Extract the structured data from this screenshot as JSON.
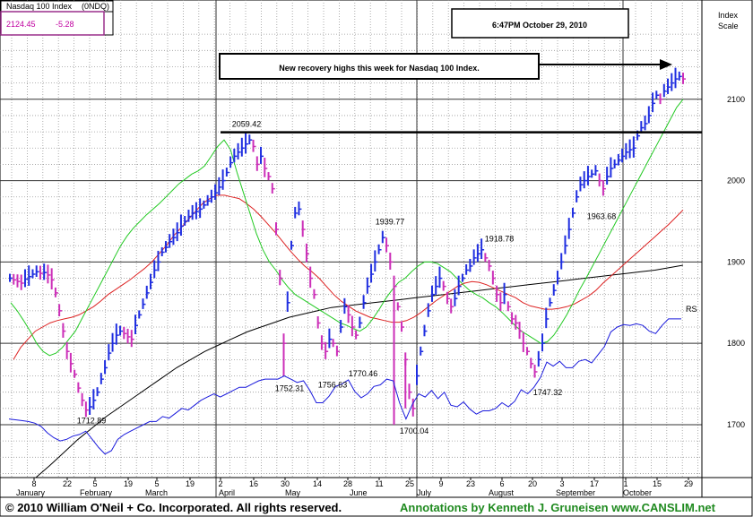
{
  "chart_data": {
    "type": "ohlc",
    "title": "Nasdaq 100 Index",
    "symbol": "(0NDQ)",
    "last_price": "2124.45",
    "change": "-5.28",
    "timestamp": "6:47PM October 29, 2010",
    "y_axis_title": [
      "Index",
      "Scale"
    ],
    "y_ticks": [
      1700,
      1800,
      1900,
      2000,
      2100
    ],
    "ylim": [
      1635,
      2200
    ],
    "callout": "New recovery highs this week for Nasdaq 100 Index.",
    "resistance_level": 2059.42,
    "rs_label": "RS",
    "price_labels": [
      {
        "text": "2059.42",
        "value": 2059.42
      },
      {
        "text": "1712.89",
        "value": 1712.89
      },
      {
        "text": "1752.31",
        "value": 1752.31
      },
      {
        "text": "1756.63",
        "value": 1756.63
      },
      {
        "text": "1770.46",
        "value": 1770.46
      },
      {
        "text": "1939.77",
        "value": 1939.77
      },
      {
        "text": "1700.04",
        "value": 1700.04
      },
      {
        "text": "1918.78",
        "value": 1918.78
      },
      {
        "text": "1747.32",
        "value": 1747.32
      },
      {
        "text": "1963.68",
        "value": 1963.68
      }
    ],
    "x_day_labels": [
      "8",
      "22",
      "5",
      "19",
      "5",
      "19",
      "2",
      "16",
      "30",
      "14",
      "28",
      "11",
      "25",
      "9",
      "23",
      "6",
      "20",
      "3",
      "17",
      "1",
      "15",
      "29"
    ],
    "x_month_labels": [
      "January",
      "February",
      "March",
      "April",
      "May",
      "June",
      "July",
      "August",
      "September",
      "October"
    ],
    "series": [
      {
        "name": "price",
        "values": [
          1880,
          1878,
          1876,
          1874,
          1879,
          1882,
          1885,
          1888,
          1886,
          1887,
          1884,
          1878,
          1862,
          1840,
          1815,
          1790,
          1775,
          1762,
          1745,
          1730,
          1718,
          1722,
          1730,
          1740,
          1756,
          1770,
          1788,
          1800,
          1810,
          1815,
          1812,
          1808,
          1805,
          1822,
          1835,
          1848,
          1862,
          1875,
          1890,
          1900,
          1912,
          1918,
          1925,
          1930,
          1936,
          1944,
          1950,
          1956,
          1960,
          1962,
          1965,
          1970,
          1975,
          1980,
          1985,
          1992,
          2000,
          2010,
          2022,
          2030,
          2035,
          2040,
          2045,
          2050,
          2042,
          2020,
          2030,
          2015,
          2005,
          1990,
          1940,
          1880,
          1800,
          1850,
          1920,
          1960,
          1965,
          1940,
          1910,
          1880,
          1860,
          1825,
          1800,
          1790,
          1805,
          1800,
          1790,
          1820,
          1845,
          1835,
          1820,
          1810,
          1825,
          1850,
          1870,
          1885,
          1900,
          1915,
          1930,
          1920,
          1900,
          1870,
          1845,
          1820,
          1780,
          1740,
          1720,
          1760,
          1790,
          1815,
          1840,
          1860,
          1870,
          1880,
          1870,
          1855,
          1845,
          1855,
          1870,
          1880,
          1890,
          1895,
          1905,
          1910,
          1915,
          1905,
          1895,
          1880,
          1860,
          1850,
          1860,
          1845,
          1830,
          1825,
          1815,
          1800,
          1790,
          1775,
          1765,
          1780,
          1800,
          1830,
          1850,
          1865,
          1880,
          1900,
          1920,
          1940,
          1960,
          1980,
          1995,
          2000,
          2005,
          2008,
          2012,
          2000,
          1990,
          2005,
          2015,
          2020,
          2025,
          2030,
          2035,
          2038,
          2040,
          2055,
          2065,
          2070,
          2080,
          2095,
          2105,
          2100,
          2110,
          2115,
          2120,
          2125,
          2128,
          2125
        ]
      },
      {
        "name": "rs_line",
        "values": [
          1707,
          1706,
          1705,
          1704,
          1702,
          1698,
          1690,
          1684,
          1680,
          1682,
          1686,
          1688,
          1692,
          1682,
          1672,
          1664,
          1668,
          1682,
          1688,
          1692,
          1696,
          1700,
          1704,
          1704,
          1710,
          1708,
          1714,
          1720,
          1718,
          1724,
          1730,
          1734,
          1738,
          1734,
          1738,
          1742,
          1746,
          1746,
          1750,
          1754,
          1756,
          1756,
          1756,
          1760,
          1756,
          1752,
          1754,
          1742,
          1727,
          1727,
          1735,
          1747,
          1750,
          1755,
          1741,
          1733,
          1738,
          1747,
          1749,
          1756,
          1754,
          1727,
          1707,
          1725,
          1738,
          1734,
          1742,
          1732,
          1740,
          1724,
          1722,
          1728,
          1719,
          1713,
          1717,
          1717,
          1720,
          1727,
          1722,
          1729,
          1743,
          1738,
          1746,
          1758,
          1777,
          1772,
          1778,
          1770,
          1770,
          1778,
          1780,
          1776,
          1786,
          1796,
          1814,
          1820,
          1823,
          1822,
          1824,
          1822,
          1815,
          1812,
          1822,
          1830,
          1830,
          1830
        ]
      },
      {
        "name": "ma_10_week",
        "values": [
          1850,
          1840,
          1828,
          1815,
          1800,
          1790,
          1785,
          1788,
          1795,
          1805,
          1815,
          1830,
          1845,
          1860,
          1875,
          1890,
          1905,
          1920,
          1932,
          1942,
          1950,
          1958,
          1965,
          1972,
          1980,
          1988,
          1996,
          2002,
          2008,
          2012,
          2018,
          2030,
          2042,
          2050,
          2038,
          2010,
          1985,
          1960,
          1935,
          1915,
          1900,
          1890,
          1878,
          1868,
          1860,
          1855,
          1850,
          1845,
          1840,
          1835,
          1830,
          1825,
          1822,
          1818,
          1815,
          1820,
          1830,
          1842,
          1855,
          1866,
          1875,
          1880,
          1888,
          1895,
          1900,
          1900,
          1898,
          1893,
          1888,
          1880,
          1872,
          1865,
          1860,
          1856,
          1850,
          1845,
          1838,
          1830,
          1822,
          1815,
          1810,
          1805,
          1800,
          1802,
          1810,
          1822,
          1835,
          1850,
          1866,
          1880,
          1895,
          1910,
          1925,
          1940,
          1955,
          1970,
          1985,
          2000,
          2015,
          2030,
          2045,
          2060,
          2075,
          2090,
          2100
        ]
      },
      {
        "name": "ma_red",
        "values": [
          1780,
          1795,
          1805,
          1815,
          1820,
          1825,
          1828,
          1830,
          1832,
          1835,
          1840,
          1845,
          1852,
          1860,
          1866,
          1872,
          1878,
          1885,
          1892,
          1900,
          1910,
          1920,
          1932,
          1942,
          1952,
          1962,
          1972,
          1978,
          1982,
          1982,
          1980,
          1978,
          1972,
          1965,
          1956,
          1946,
          1936,
          1925,
          1914,
          1904,
          1895,
          1888,
          1880,
          1870,
          1860,
          1852,
          1846,
          1840,
          1836,
          1832,
          1830,
          1828,
          1826,
          1826,
          1828,
          1832,
          1838,
          1845,
          1852,
          1858,
          1864,
          1870,
          1874,
          1876,
          1875,
          1872,
          1868,
          1864,
          1860,
          1856,
          1850,
          1846,
          1844,
          1842,
          1842,
          1843,
          1845,
          1848,
          1853,
          1858,
          1865,
          1874,
          1882,
          1890,
          1898,
          1906,
          1914,
          1922,
          1930,
          1938,
          1946,
          1955,
          1964
        ]
      },
      {
        "name": "ma_200_day",
        "values": [
          1635,
          1650,
          1666,
          1682,
          1696,
          1710,
          1722,
          1734,
          1746,
          1758,
          1770,
          1780,
          1790,
          1798,
          1806,
          1814,
          1820,
          1826,
          1832,
          1836,
          1840,
          1844,
          1846,
          1848,
          1850,
          1852,
          1854,
          1856,
          1858,
          1860,
          1862,
          1864,
          1866,
          1868,
          1870,
          1872,
          1874,
          1876,
          1878,
          1880,
          1882,
          1884,
          1886,
          1888,
          1890,
          1893,
          1896
        ]
      }
    ]
  },
  "footer": {
    "copyright": "© 2010 William O'Neil + Co. Incorporated. All rights reserved.",
    "annotation": "Annotations by Kenneth J. Gruneisen www.CANSLIM.net"
  }
}
